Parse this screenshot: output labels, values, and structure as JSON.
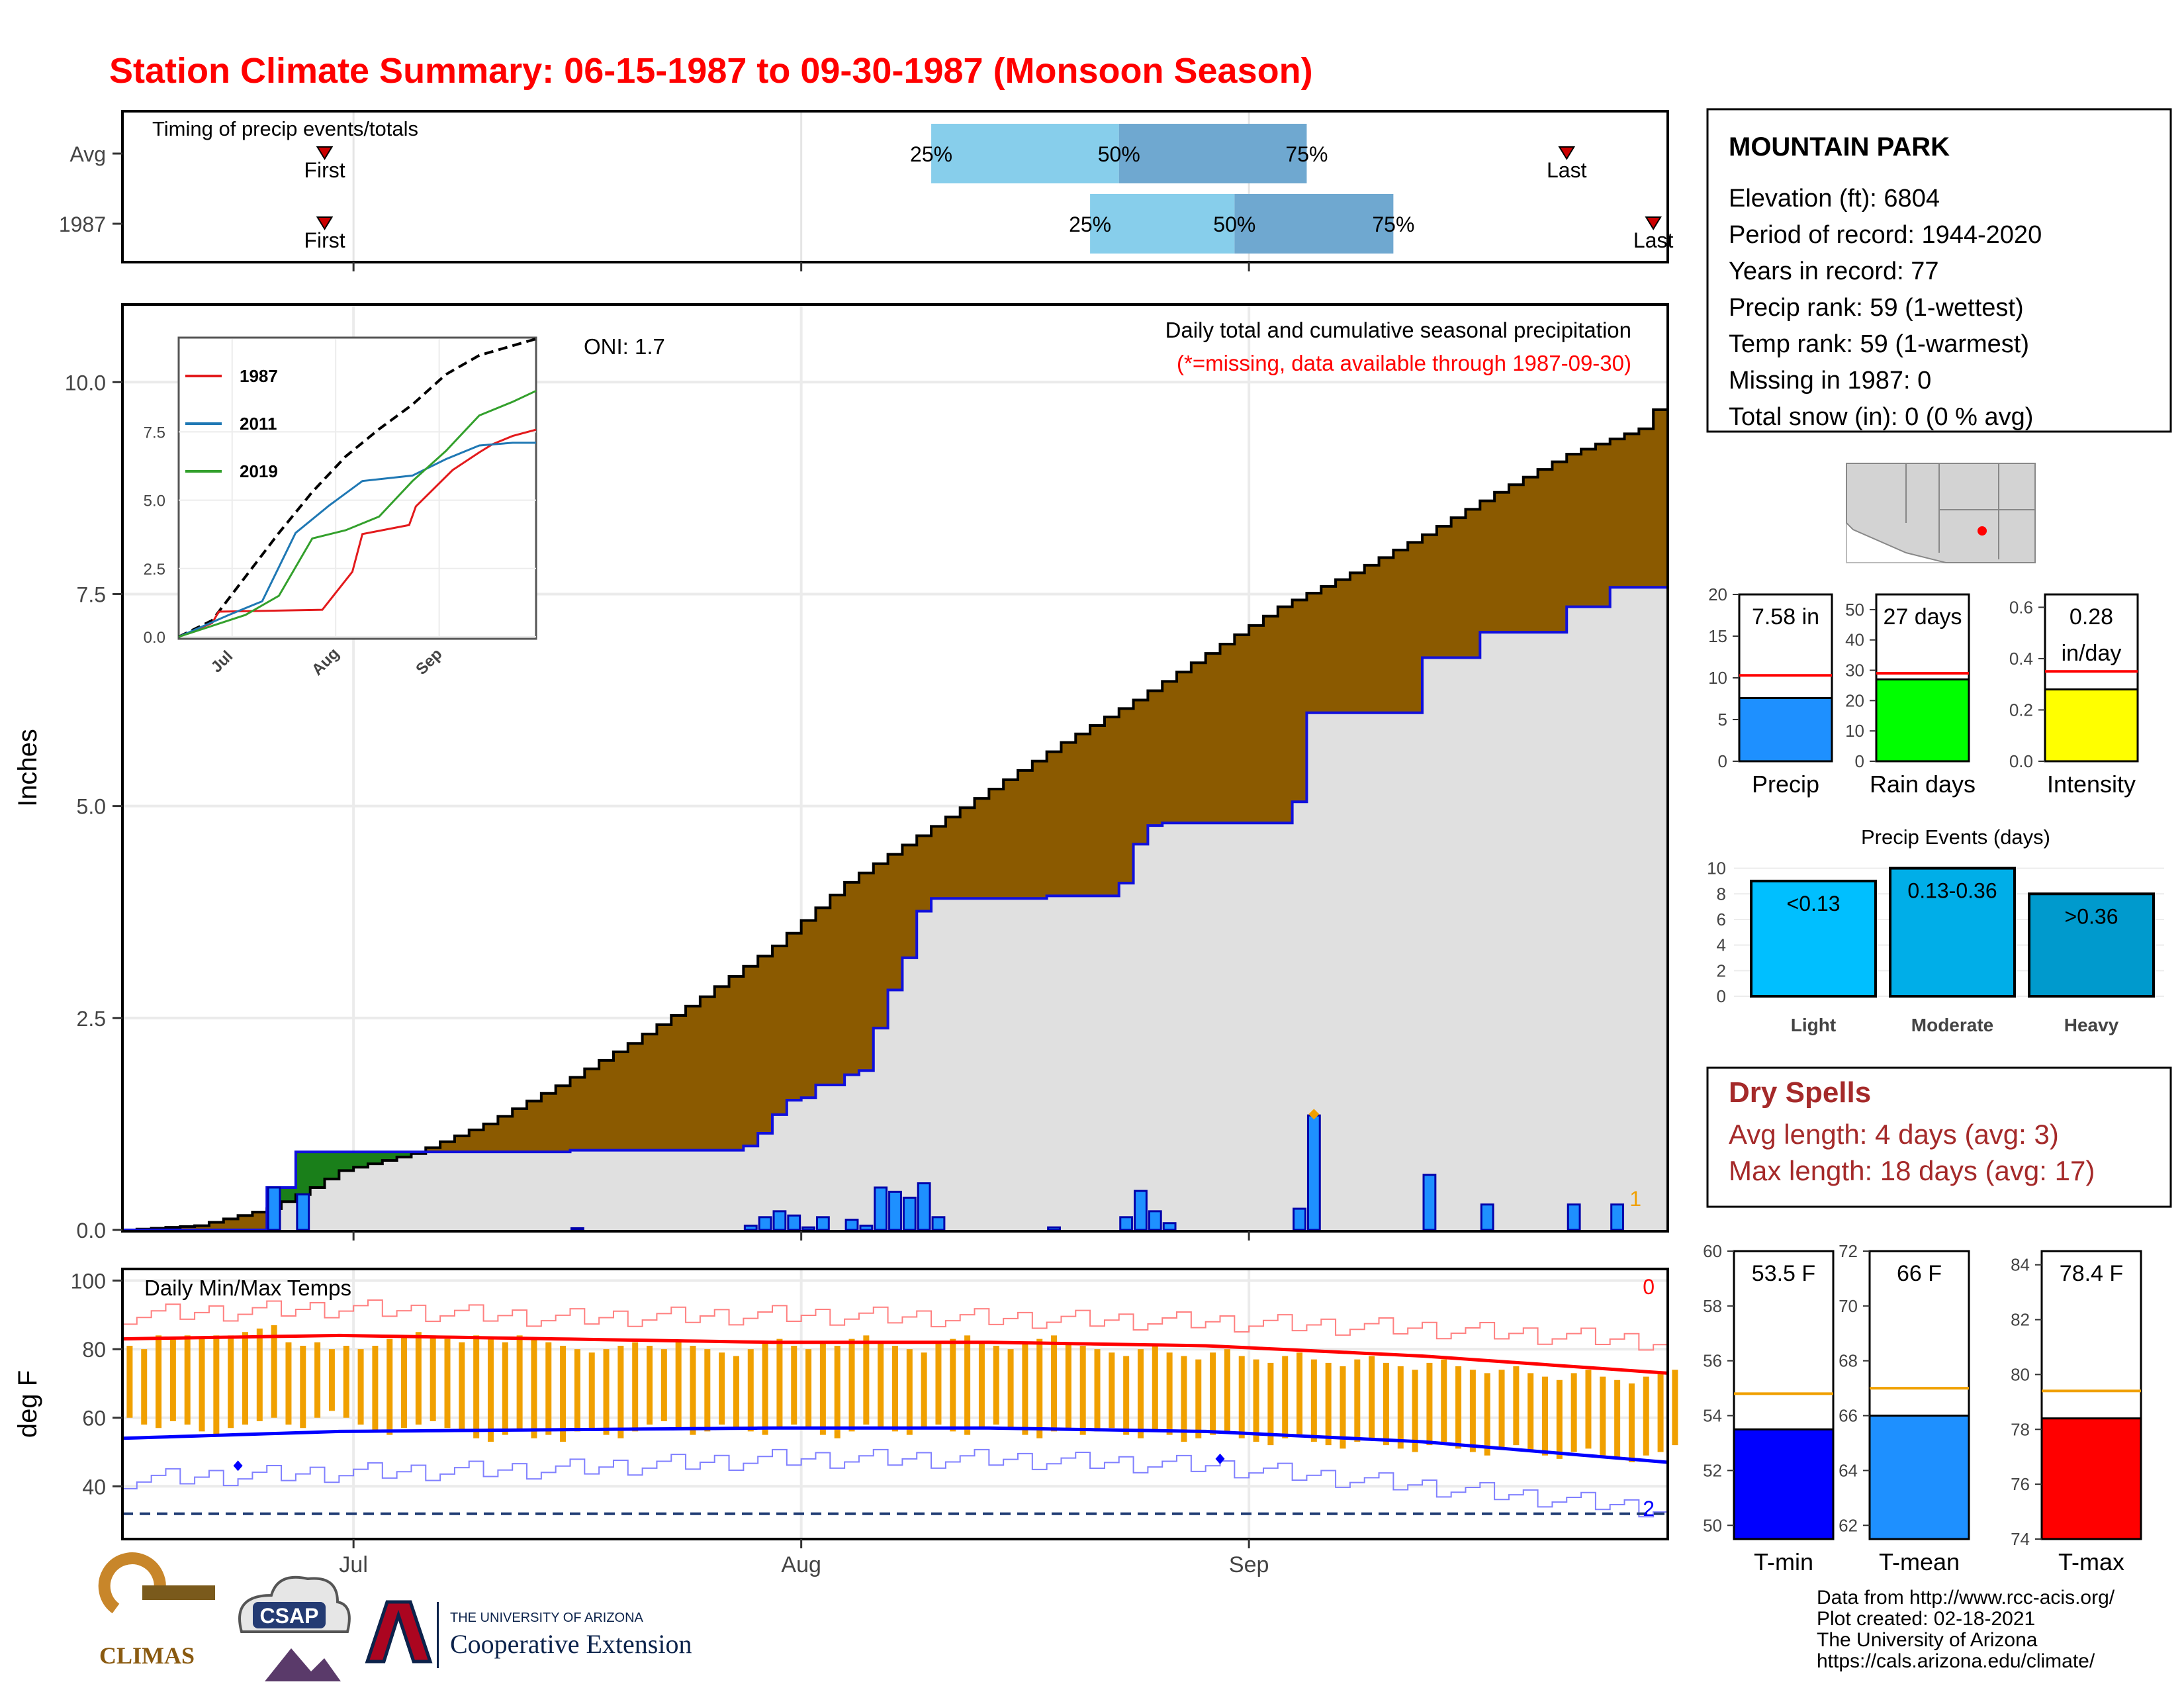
{
  "title": "Station Climate Summary: 06-15-1987 to 09-30-1987 (Monsoon Season)",
  "colors": {
    "title": "#ff0000",
    "brown": "#8b5a00",
    "green": "#1a7f1a",
    "gray_fill": "#e0e0e0",
    "blue_line": "#1010dd",
    "bar_blue": "#1e90ff",
    "quartile_light": "#87ceeb",
    "quartile_dark": "#6fa8d0",
    "orange": "#f0a000",
    "red": "#ff0000",
    "dry_spell": "#a52a2a"
  },
  "timing": {
    "label": "Timing of precip events/totals",
    "rows": [
      {
        "name": "Avg",
        "first_day": 180,
        "p25_day": 222,
        "p50_day": 235,
        "p75_day": 248,
        "last_day": 266
      },
      {
        "name": "1987",
        "first_day": 180,
        "p25_day": 233,
        "p50_day": 243,
        "p75_day": 254,
        "last_day": 272
      }
    ],
    "first_label": "First",
    "last_label": "Last",
    "p25_label": "25%",
    "p50_label": "50%",
    "p75_label": "75%"
  },
  "precip_panel": {
    "ylabel": "Inches",
    "title_line1": "Daily total and cumulative seasonal precipitation",
    "title_line2": "(*=missing, data available through 1987-09-30)",
    "oni": "ONI: 1.7",
    "corner_count": "1",
    "y_ticks": [
      "0.0",
      "2.5",
      "5.0",
      "7.5",
      "10.0"
    ],
    "y_max": 10.9
  },
  "inset": {
    "y_ticks": [
      "0.0",
      "2.5",
      "5.0",
      "7.5"
    ],
    "x_ticks": [
      "Jul",
      "Aug",
      "Sep"
    ],
    "legend": [
      {
        "name": "1987",
        "color": "#e31a1c"
      },
      {
        "name": "2011",
        "color": "#1f78b4"
      },
      {
        "name": "2019",
        "color": "#33a02c"
      }
    ]
  },
  "temp_panel": {
    "label": "Daily Min/Max Temps",
    "ylabel": "deg F",
    "count_max": "0",
    "count_min": "2",
    "y_ticks": [
      "40",
      "60",
      "80",
      "100"
    ],
    "freeze_line": 32
  },
  "x_ticks": [
    "Jul",
    "Aug",
    "Sep"
  ],
  "station": {
    "name": "MOUNTAIN PARK",
    "lines": [
      "Elevation (ft): 6804",
      "Period of record: 1944-2020",
      "Years in record: 77",
      "Precip rank: 59 (1-wettest)",
      "Temp rank: 59 (1-warmest)",
      "Missing in 1987: 0",
      "Total snow (in): 0 (0 % avg)"
    ]
  },
  "mini_bars": [
    {
      "label": "Precip",
      "value": 7.58,
      "avg": 10.3,
      "ymax": 20,
      "ticks": [
        "0",
        "5",
        "10",
        "15",
        "20"
      ],
      "text": "7.58 in",
      "color": "#1e90ff"
    },
    {
      "label": "Rain days",
      "value": 27,
      "avg": 29,
      "ymax": 55,
      "ticks": [
        "0",
        "10",
        "20",
        "30",
        "40",
        "50"
      ],
      "text": "27 days",
      "color": "#00ff00"
    },
    {
      "label": "Intensity",
      "value": 0.28,
      "avg": 0.35,
      "ymax": 0.65,
      "ticks": [
        "0.0",
        "0.2",
        "0.4",
        "0.6"
      ],
      "text": "0.28",
      "text2": "in/day",
      "color": "#ffff00"
    }
  ],
  "events": {
    "title": "Precip Events (days)",
    "ticks": [
      "0",
      "2",
      "4",
      "6",
      "8",
      "10"
    ],
    "bars": [
      {
        "label": "Light",
        "value": 9,
        "text": "<0.13",
        "color": "#00bfff"
      },
      {
        "label": "Moderate",
        "value": 10,
        "text": "0.13-0.36",
        "color": "#00aee8"
      },
      {
        "label": "Heavy",
        "value": 8,
        "text": ">0.36",
        "color": "#009acd"
      }
    ]
  },
  "dry_spells": {
    "title": "Dry Spells",
    "line1": "Avg length: 4 days (avg: 3)",
    "line2": "Max length: 18 days (avg: 17)"
  },
  "temp_bars": [
    {
      "label": "T-min",
      "value": 53.5,
      "avg": 54.8,
      "ymin": 49.5,
      "ymax": 60,
      "ticks": [
        "50",
        "52",
        "54",
        "56",
        "58",
        "60"
      ],
      "text": "53.5 F",
      "color": "#0000ff"
    },
    {
      "label": "T-mean",
      "value": 66,
      "avg": 67,
      "ymin": 61.5,
      "ymax": 72,
      "ticks": [
        "62",
        "64",
        "66",
        "68",
        "70",
        "72"
      ],
      "text": "66 F",
      "color": "#1e90ff"
    },
    {
      "label": "T-max",
      "value": 78.4,
      "avg": 79.4,
      "ymin": 74,
      "ymax": 84.5,
      "ticks": [
        "74",
        "76",
        "78",
        "80",
        "82",
        "84"
      ],
      "text": "78.4 F",
      "color": "#ff0000"
    }
  ],
  "footer": {
    "lines": [
      "Data from http://www.rcc-acis.org/",
      "Plot created: 02-18-2021",
      "The University of Arizona",
      "https://cals.arizona.edu/climate/"
    ]
  },
  "logos": {
    "climas": "CLIMAS",
    "csap": "CSAP",
    "ua_small": "THE UNIVERSITY OF ARIZONA",
    "ua_big": "Cooperative Extension"
  },
  "chart_data": {
    "type": "area",
    "x_unit": "day of season (0 = Jun 15, 1987)",
    "daily_precip_1987": [
      {
        "day": 10,
        "in": 0.5
      },
      {
        "day": 12,
        "in": 0.42
      },
      {
        "day": 31,
        "in": 0.02
      },
      {
        "day": 43,
        "in": 0.05
      },
      {
        "day": 44,
        "in": 0.15
      },
      {
        "day": 45,
        "in": 0.22
      },
      {
        "day": 46,
        "in": 0.17
      },
      {
        "day": 47,
        "in": 0.03
      },
      {
        "day": 48,
        "in": 0.15
      },
      {
        "day": 50,
        "in": 0.12
      },
      {
        "day": 51,
        "in": 0.05
      },
      {
        "day": 52,
        "in": 0.5
      },
      {
        "day": 53,
        "in": 0.45
      },
      {
        "day": 54,
        "in": 0.38
      },
      {
        "day": 55,
        "in": 0.55
      },
      {
        "day": 56,
        "in": 0.15
      },
      {
        "day": 64,
        "in": 0.03
      },
      {
        "day": 69,
        "in": 0.15
      },
      {
        "day": 70,
        "in": 0.46
      },
      {
        "day": 71,
        "in": 0.22
      },
      {
        "day": 72,
        "in": 0.08
      },
      {
        "day": 81,
        "in": 0.25
      },
      {
        "day": 82,
        "in": 1.35
      },
      {
        "day": 90,
        "in": 0.65
      },
      {
        "day": 94,
        "in": 0.3
      },
      {
        "day": 100,
        "in": 0.3
      },
      {
        "day": 103,
        "in": 0.3
      }
    ],
    "cumulative_1987": [
      [
        0,
        0
      ],
      [
        9,
        0
      ],
      [
        10,
        0.5
      ],
      [
        11,
        0.5
      ],
      [
        12,
        0.92
      ],
      [
        30,
        0.92
      ],
      [
        31,
        0.94
      ],
      [
        42,
        0.94
      ],
      [
        43,
        0.99
      ],
      [
        44,
        1.14
      ],
      [
        45,
        1.36
      ],
      [
        46,
        1.53
      ],
      [
        47,
        1.56
      ],
      [
        48,
        1.71
      ],
      [
        49,
        1.71
      ],
      [
        50,
        1.83
      ],
      [
        51,
        1.88
      ],
      [
        52,
        2.38
      ],
      [
        53,
        2.83
      ],
      [
        54,
        3.21
      ],
      [
        55,
        3.76
      ],
      [
        56,
        3.91
      ],
      [
        63,
        3.91
      ],
      [
        64,
        3.94
      ],
      [
        68,
        3.94
      ],
      [
        69,
        4.09
      ],
      [
        70,
        4.55
      ],
      [
        71,
        4.77
      ],
      [
        72,
        4.8
      ],
      [
        80,
        4.8
      ],
      [
        81,
        5.05
      ],
      [
        82,
        6.1
      ],
      [
        89,
        6.1
      ],
      [
        90,
        6.75
      ],
      [
        93,
        6.75
      ],
      [
        94,
        7.05
      ],
      [
        99,
        7.05
      ],
      [
        100,
        7.35
      ],
      [
        102,
        7.35
      ],
      [
        103,
        7.58
      ],
      [
        107,
        7.58
      ]
    ],
    "cumulative_avg": [
      [
        0,
        0.0
      ],
      [
        5,
        0.05
      ],
      [
        10,
        0.25
      ],
      [
        13,
        0.5
      ],
      [
        15,
        0.7
      ],
      [
        20,
        0.9
      ],
      [
        25,
        1.25
      ],
      [
        30,
        1.7
      ],
      [
        35,
        2.2
      ],
      [
        40,
        2.75
      ],
      [
        45,
        3.35
      ],
      [
        50,
        4.1
      ],
      [
        55,
        4.65
      ],
      [
        60,
        5.2
      ],
      [
        65,
        5.75
      ],
      [
        70,
        6.25
      ],
      [
        75,
        6.8
      ],
      [
        80,
        7.35
      ],
      [
        85,
        7.75
      ],
      [
        90,
        8.2
      ],
      [
        95,
        8.7
      ],
      [
        100,
        9.15
      ],
      [
        105,
        9.45
      ],
      [
        107,
        9.9
      ]
    ],
    "inset_series": {
      "avg": [
        [
          0,
          0
        ],
        [
          10,
          0.6
        ],
        [
          20,
          2.2
        ],
        [
          30,
          3.8
        ],
        [
          40,
          5.3
        ],
        [
          50,
          6.6
        ],
        [
          60,
          7.6
        ],
        [
          70,
          8.5
        ],
        [
          80,
          9.6
        ],
        [
          90,
          10.3
        ],
        [
          107,
          10.9
        ]
      ],
      "1987": [
        [
          0,
          0
        ],
        [
          10,
          0.5
        ],
        [
          12,
          0.92
        ],
        [
          43,
          0.99
        ],
        [
          52,
          2.38
        ],
        [
          55,
          3.76
        ],
        [
          69,
          4.09
        ],
        [
          71,
          4.77
        ],
        [
          82,
          6.1
        ],
        [
          90,
          6.75
        ],
        [
          94,
          7.05
        ],
        [
          100,
          7.35
        ],
        [
          107,
          7.58
        ]
      ],
      "2011": [
        [
          0,
          0
        ],
        [
          15,
          0.8
        ],
        [
          25,
          1.3
        ],
        [
          35,
          3.8
        ],
        [
          45,
          4.8
        ],
        [
          55,
          5.7
        ],
        [
          70,
          5.9
        ],
        [
          80,
          6.5
        ],
        [
          90,
          7.0
        ],
        [
          100,
          7.1
        ],
        [
          107,
          7.1
        ]
      ],
      "2019": [
        [
          0,
          0
        ],
        [
          20,
          0.8
        ],
        [
          30,
          1.5
        ],
        [
          40,
          3.6
        ],
        [
          50,
          3.9
        ],
        [
          60,
          4.4
        ],
        [
          70,
          5.7
        ],
        [
          80,
          6.8
        ],
        [
          90,
          8.1
        ],
        [
          100,
          8.6
        ],
        [
          107,
          9.0
        ]
      ]
    },
    "temp_avg_max": [
      [
        0,
        83
      ],
      [
        15,
        84
      ],
      [
        30,
        83
      ],
      [
        45,
        82
      ],
      [
        60,
        82
      ],
      [
        75,
        81
      ],
      [
        90,
        78
      ],
      [
        107,
        73
      ]
    ],
    "temp_avg_min": [
      [
        0,
        54
      ],
      [
        15,
        56
      ],
      [
        30,
        56.5
      ],
      [
        45,
        57
      ],
      [
        60,
        57
      ],
      [
        75,
        56
      ],
      [
        90,
        53
      ],
      [
        107,
        47
      ]
    ],
    "temp_record_high": [
      [
        0,
        90
      ],
      [
        15,
        92
      ],
      [
        30,
        89
      ],
      [
        45,
        90
      ],
      [
        60,
        89
      ],
      [
        75,
        88
      ],
      [
        90,
        86
      ],
      [
        107,
        82
      ]
    ],
    "temp_record_low": [
      [
        0,
        42
      ],
      [
        15,
        44
      ],
      [
        30,
        45
      ],
      [
        45,
        48
      ],
      [
        60,
        48
      ],
      [
        75,
        46
      ],
      [
        90,
        40
      ],
      [
        107,
        33
      ]
    ],
    "daily_temps_1987": [
      [
        0,
        60,
        81
      ],
      [
        1,
        58,
        80
      ],
      [
        2,
        57,
        84
      ],
      [
        3,
        59,
        83
      ],
      [
        4,
        58,
        84
      ],
      [
        5,
        56,
        83
      ],
      [
        6,
        55,
        84
      ],
      [
        7,
        57,
        84
      ],
      [
        8,
        58,
        85
      ],
      [
        9,
        59,
        86
      ],
      [
        10,
        60,
        87
      ],
      [
        11,
        58,
        82
      ],
      [
        12,
        57,
        81
      ],
      [
        13,
        60,
        82
      ],
      [
        14,
        62,
        80
      ],
      [
        15,
        60,
        81
      ],
      [
        16,
        58,
        80
      ],
      [
        17,
        56,
        81
      ],
      [
        18,
        55,
        83
      ],
      [
        19,
        57,
        84
      ],
      [
        20,
        58,
        85
      ],
      [
        21,
        59,
        84
      ],
      [
        22,
        57,
        83
      ],
      [
        23,
        56,
        82
      ],
      [
        24,
        54,
        84
      ],
      [
        25,
        53,
        83
      ],
      [
        26,
        55,
        82
      ],
      [
        27,
        56,
        84
      ],
      [
        28,
        54,
        83
      ],
      [
        29,
        55,
        82
      ],
      [
        30,
        53,
        81
      ],
      [
        31,
        56,
        80
      ],
      [
        32,
        57,
        79
      ],
      [
        33,
        55,
        80
      ],
      [
        34,
        54,
        81
      ],
      [
        35,
        56,
        82
      ],
      [
        36,
        58,
        81
      ],
      [
        37,
        59,
        80
      ],
      [
        38,
        57,
        82
      ],
      [
        39,
        55,
        81
      ],
      [
        40,
        56,
        80
      ],
      [
        41,
        58,
        79
      ],
      [
        42,
        57,
        78
      ],
      [
        43,
        56,
        80
      ],
      [
        44,
        55,
        82
      ],
      [
        45,
        57,
        83
      ],
      [
        46,
        58,
        81
      ],
      [
        47,
        57,
        80
      ],
      [
        48,
        55,
        82
      ],
      [
        49,
        54,
        81
      ],
      [
        50,
        56,
        83
      ],
      [
        51,
        58,
        84
      ],
      [
        52,
        57,
        82
      ],
      [
        53,
        56,
        81
      ],
      [
        54,
        55,
        80
      ],
      [
        55,
        57,
        79
      ],
      [
        56,
        58,
        82
      ],
      [
        57,
        56,
        83
      ],
      [
        58,
        55,
        84
      ],
      [
        59,
        57,
        82
      ],
      [
        60,
        58,
        81
      ],
      [
        61,
        57,
        80
      ],
      [
        62,
        55,
        82
      ],
      [
        63,
        54,
        83
      ],
      [
        64,
        56,
        84
      ],
      [
        65,
        57,
        82
      ],
      [
        66,
        55,
        81
      ],
      [
        67,
        56,
        80
      ],
      [
        68,
        57,
        79
      ],
      [
        69,
        55,
        78
      ],
      [
        70,
        54,
        80
      ],
      [
        71,
        56,
        81
      ],
      [
        72,
        55,
        79
      ],
      [
        73,
        53,
        78
      ],
      [
        74,
        54,
        77
      ],
      [
        75,
        55,
        79
      ],
      [
        76,
        56,
        80
      ],
      [
        77,
        54,
        78
      ],
      [
        78,
        53,
        77
      ],
      [
        79,
        52,
        76
      ],
      [
        80,
        54,
        78
      ],
      [
        81,
        55,
        79
      ],
      [
        82,
        53,
        77
      ],
      [
        83,
        52,
        76
      ],
      [
        84,
        51,
        75
      ],
      [
        85,
        53,
        77
      ],
      [
        86,
        54,
        78
      ],
      [
        87,
        52,
        76
      ],
      [
        88,
        51,
        75
      ],
      [
        89,
        50,
        74
      ],
      [
        90,
        52,
        76
      ],
      [
        91,
        53,
        77
      ],
      [
        92,
        51,
        75
      ],
      [
        93,
        50,
        74
      ],
      [
        94,
        49,
        73
      ],
      [
        95,
        51,
        74
      ],
      [
        96,
        52,
        75
      ],
      [
        97,
        50,
        73
      ],
      [
        98,
        49,
        72
      ],
      [
        99,
        48,
        71
      ],
      [
        100,
        50,
        73
      ],
      [
        101,
        51,
        74
      ],
      [
        102,
        49,
        72
      ],
      [
        103,
        48,
        71
      ],
      [
        104,
        47,
        70
      ],
      [
        105,
        49,
        72
      ],
      [
        106,
        50,
        73
      ],
      [
        107,
        52,
        74
      ]
    ]
  }
}
